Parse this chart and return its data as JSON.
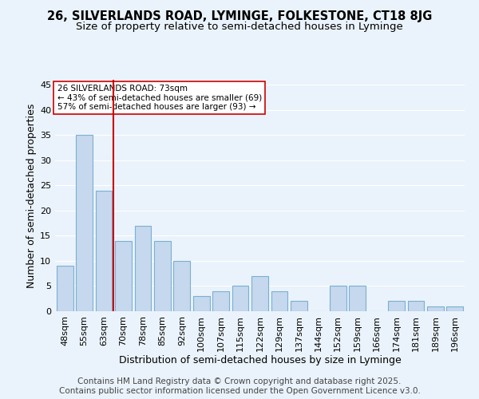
{
  "title_line1": "26, SILVERLANDS ROAD, LYMINGE, FOLKESTONE, CT18 8JG",
  "title_line2": "Size of property relative to semi-detached houses in Lyminge",
  "xlabel": "Distribution of semi-detached houses by size in Lyminge",
  "ylabel": "Number of semi-detached properties",
  "categories": [
    "48sqm",
    "55sqm",
    "63sqm",
    "70sqm",
    "78sqm",
    "85sqm",
    "92sqm",
    "100sqm",
    "107sqm",
    "115sqm",
    "122sqm",
    "129sqm",
    "137sqm",
    "144sqm",
    "152sqm",
    "159sqm",
    "166sqm",
    "174sqm",
    "181sqm",
    "189sqm",
    "196sqm"
  ],
  "values": [
    9,
    35,
    24,
    14,
    17,
    14,
    10,
    3,
    4,
    5,
    7,
    4,
    2,
    0,
    5,
    5,
    0,
    2,
    2,
    1,
    1
  ],
  "bar_color": "#c5d8ed",
  "bar_edge_color": "#7bafd4",
  "vline_x_index": 3,
  "vline_color": "#cc0000",
  "annotation_title": "26 SILVERLANDS ROAD: 73sqm",
  "annotation_line1": "← 43% of semi-detached houses are smaller (69)",
  "annotation_line2": "57% of semi-detached houses are larger (93) →",
  "annotation_box_color": "#ffffff",
  "annotation_box_edge": "#cc0000",
  "ylim": [
    0,
    46
  ],
  "yticks": [
    0,
    5,
    10,
    15,
    20,
    25,
    30,
    35,
    40,
    45
  ],
  "footer_line1": "Contains HM Land Registry data © Crown copyright and database right 2025.",
  "footer_line2": "Contains public sector information licensed under the Open Government Licence v3.0.",
  "bg_color": "#eaf3fb",
  "plot_bg_color": "#eaf3fb",
  "grid_color": "#ffffff",
  "title_fontsize": 10.5,
  "subtitle_fontsize": 9.5,
  "axis_label_fontsize": 9,
  "tick_fontsize": 8,
  "annotation_fontsize": 7.5,
  "footer_fontsize": 7.5
}
